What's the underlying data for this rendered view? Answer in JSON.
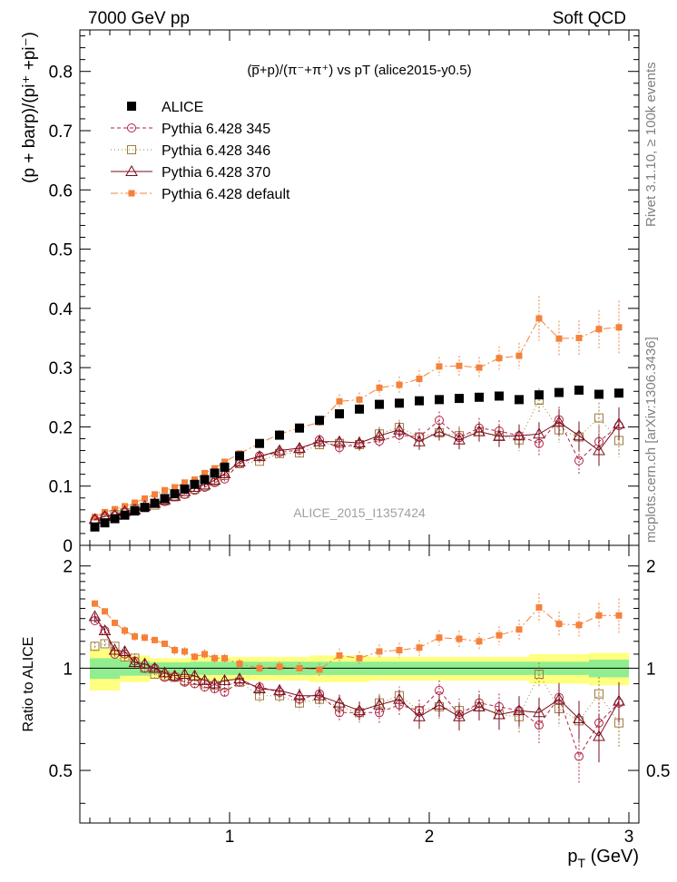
{
  "header": {
    "left": "7000 GeV pp",
    "right": "Soft QCD"
  },
  "side_labels": {
    "rivet": "Rivet 3.1.10, ≥ 100k events",
    "mcplots": "mcplots.cern.ch [arXiv:1306.3436]"
  },
  "colors": {
    "alice": "#000000",
    "p345": "#b22244",
    "p346": "#9c7c3c",
    "p370": "#7a0c1c",
    "pdef": "#f5813a",
    "band_inner": "#90ee90",
    "band_outer": "#ffff80"
  },
  "chart_data": [
    {
      "type": "scatter",
      "title": "(p̅+p)/(π⁻+π⁺) vs pT (alice2015-y0.5)",
      "xlabel": "p_T (GeV)",
      "ylabel": "(p + barp)/(pi⁺ +pi⁻)",
      "xlim": [
        0.25,
        3.05
      ],
      "ylim": [
        0,
        0.87
      ],
      "yticks": [
        0,
        0.1,
        0.2,
        0.3,
        0.4,
        0.5,
        0.6,
        0.7,
        0.8
      ],
      "yticklabels": [
        "0",
        "0.1",
        "0.2",
        "0.3",
        "0.4",
        "0.5",
        "0.6",
        "0.7",
        "0.8"
      ],
      "xticks": [
        1,
        2,
        3
      ],
      "xticklabels": [
        "1",
        "2",
        "3"
      ],
      "watermark": "ALICE_2015_I1357424",
      "legend": [
        "ALICE",
        "Pythia 6.428 345",
        "Pythia 6.428 346",
        "Pythia 6.428 370",
        "Pythia 6.428 default"
      ],
      "x": [
        0.325,
        0.375,
        0.425,
        0.475,
        0.525,
        0.575,
        0.625,
        0.675,
        0.725,
        0.775,
        0.825,
        0.875,
        0.925,
        0.975,
        1.05,
        1.15,
        1.25,
        1.35,
        1.45,
        1.55,
        1.65,
        1.75,
        1.85,
        1.95,
        2.05,
        2.15,
        2.25,
        2.35,
        2.45,
        2.55,
        2.65,
        2.75,
        2.85,
        2.95
      ],
      "series": [
        {
          "name": "ALICE",
          "values": [
            0.031,
            0.038,
            0.045,
            0.051,
            0.058,
            0.064,
            0.071,
            0.079,
            0.087,
            0.095,
            0.103,
            0.111,
            0.122,
            0.132,
            0.151,
            0.172,
            0.186,
            0.198,
            0.211,
            0.222,
            0.23,
            0.238,
            0.24,
            0.244,
            0.246,
            0.248,
            0.25,
            0.252,
            0.246,
            0.254,
            0.258,
            0.262,
            0.255,
            0.257
          ]
        },
        {
          "name": "Pythia 6.428 345",
          "values": [
            0.043,
            0.049,
            0.05,
            0.056,
            0.061,
            0.064,
            0.071,
            0.074,
            0.082,
            0.086,
            0.093,
            0.098,
            0.106,
            0.112,
            0.138,
            0.151,
            0.157,
            0.161,
            0.178,
            0.165,
            0.171,
            0.176,
            0.186,
            0.183,
            0.211,
            0.182,
            0.198,
            0.193,
            0.185,
            0.172,
            0.212,
            0.143,
            0.175,
            0.202
          ]
        },
        {
          "name": "Pythia 6.428 346",
          "values": [
            0.036,
            0.045,
            0.052,
            0.055,
            0.062,
            0.064,
            0.068,
            0.075,
            0.082,
            0.087,
            0.095,
            0.1,
            0.108,
            0.118,
            0.138,
            0.142,
            0.155,
            0.156,
            0.17,
            0.172,
            0.17,
            0.188,
            0.199,
            0.183,
            0.19,
            0.185,
            0.192,
            0.185,
            0.178,
            0.245,
            0.195,
            0.183,
            0.215,
            0.177
          ]
        },
        {
          "name": "Pythia 6.428 370",
          "values": [
            0.044,
            0.049,
            0.051,
            0.057,
            0.06,
            0.066,
            0.071,
            0.077,
            0.083,
            0.091,
            0.098,
            0.102,
            0.11,
            0.121,
            0.141,
            0.15,
            0.16,
            0.164,
            0.175,
            0.175,
            0.173,
            0.185,
            0.195,
            0.175,
            0.192,
            0.178,
            0.192,
            0.184,
            0.185,
            0.188,
            0.208,
            0.185,
            0.16,
            0.205
          ]
        },
        {
          "name": "Pythia 6.428 default",
          "values": [
            0.048,
            0.056,
            0.061,
            0.066,
            0.072,
            0.079,
            0.086,
            0.093,
            0.098,
            0.106,
            0.111,
            0.122,
            0.13,
            0.141,
            0.155,
            0.172,
            0.188,
            0.198,
            0.208,
            0.243,
            0.246,
            0.266,
            0.271,
            0.281,
            0.302,
            0.303,
            0.3,
            0.316,
            0.32,
            0.383,
            0.349,
            0.35,
            0.365,
            0.368
          ]
        }
      ],
      "errors": {
        "ALICE": 0.004,
        "Pythia 6.428 345": [
          0.001,
          0.001,
          0.001,
          0.002,
          0.002,
          0.002,
          0.002,
          0.002,
          0.003,
          0.003,
          0.003,
          0.003,
          0.004,
          0.004,
          0.005,
          0.006,
          0.007,
          0.008,
          0.009,
          0.01,
          0.011,
          0.012,
          0.013,
          0.014,
          0.015,
          0.016,
          0.017,
          0.018,
          0.019,
          0.02,
          0.022,
          0.024,
          0.026,
          0.028
        ],
        "Pythia 6.428 346": [
          0.001,
          0.001,
          0.001,
          0.002,
          0.002,
          0.002,
          0.002,
          0.002,
          0.003,
          0.003,
          0.003,
          0.003,
          0.004,
          0.004,
          0.005,
          0.006,
          0.007,
          0.008,
          0.009,
          0.01,
          0.011,
          0.012,
          0.013,
          0.014,
          0.015,
          0.016,
          0.017,
          0.018,
          0.019,
          0.02,
          0.022,
          0.024,
          0.026,
          0.028
        ],
        "Pythia 6.428 370": [
          0.001,
          0.001,
          0.001,
          0.002,
          0.002,
          0.002,
          0.002,
          0.002,
          0.003,
          0.003,
          0.003,
          0.003,
          0.004,
          0.004,
          0.005,
          0.006,
          0.007,
          0.008,
          0.009,
          0.01,
          0.011,
          0.012,
          0.013,
          0.014,
          0.015,
          0.016,
          0.017,
          0.018,
          0.019,
          0.02,
          0.022,
          0.024,
          0.026,
          0.028
        ],
        "Pythia 6.428 default": [
          0.001,
          0.001,
          0.001,
          0.002,
          0.002,
          0.002,
          0.002,
          0.002,
          0.003,
          0.003,
          0.003,
          0.004,
          0.004,
          0.004,
          0.005,
          0.006,
          0.007,
          0.008,
          0.009,
          0.012,
          0.012,
          0.013,
          0.014,
          0.015,
          0.016,
          0.017,
          0.018,
          0.02,
          0.022,
          0.038,
          0.03,
          0.03,
          0.032,
          0.045
        ]
      }
    },
    {
      "type": "scatter",
      "title": "Ratio to ALICE",
      "xlabel": "p_T (GeV)",
      "ylabel": "Ratio to ALICE",
      "xlim": [
        0.25,
        3.05
      ],
      "ylim": [
        0.35,
        2.3
      ],
      "yticks": [
        0.5,
        1,
        2
      ],
      "yticklabels": [
        "0.5",
        "1",
        "2"
      ],
      "xticks": [
        1,
        2,
        3
      ],
      "xticklabels": [
        "1",
        "2",
        "3"
      ],
      "band_edges": [
        0.3,
        0.45,
        0.6,
        0.8,
        1.0,
        1.2,
        1.4,
        1.5,
        1.7,
        1.9,
        2.1,
        2.3,
        2.5,
        2.8,
        3.0
      ],
      "band_inner": [
        0.07,
        0.05,
        0.04,
        0.045,
        0.045,
        0.045,
        0.045,
        0.045,
        0.045,
        0.045,
        0.045,
        0.045,
        0.045,
        0.06,
        0.065
      ],
      "band_outer": [
        0.14,
        0.09,
        0.07,
        0.08,
        0.08,
        0.08,
        0.09,
        0.09,
        0.08,
        0.08,
        0.08,
        0.08,
        0.1,
        0.11,
        0.12
      ],
      "series": [
        {
          "name": "Pythia 6.428 345",
          "values": [
            1.38,
            1.29,
            1.1,
            1.1,
            1.05,
            1.0,
            1.0,
            0.94,
            0.94,
            0.91,
            0.9,
            0.88,
            0.87,
            0.85,
            0.91,
            0.88,
            0.85,
            0.81,
            0.84,
            0.74,
            0.74,
            0.74,
            0.78,
            0.75,
            0.86,
            0.73,
            0.79,
            0.77,
            0.75,
            0.68,
            0.82,
            0.55,
            0.69,
            0.79
          ]
        },
        {
          "name": "Pythia 6.428 346",
          "values": [
            1.16,
            1.18,
            1.16,
            1.08,
            1.07,
            1.0,
            0.96,
            0.95,
            0.94,
            0.92,
            0.92,
            0.9,
            0.89,
            0.89,
            0.91,
            0.83,
            0.83,
            0.79,
            0.81,
            0.77,
            0.74,
            0.79,
            0.83,
            0.75,
            0.77,
            0.75,
            0.77,
            0.73,
            0.72,
            0.96,
            0.76,
            0.7,
            0.84,
            0.69
          ]
        },
        {
          "name": "Pythia 6.428 370",
          "values": [
            1.42,
            1.29,
            1.13,
            1.12,
            1.04,
            1.03,
            1.0,
            0.97,
            0.95,
            0.96,
            0.95,
            0.92,
            0.9,
            0.92,
            0.93,
            0.87,
            0.86,
            0.83,
            0.83,
            0.79,
            0.75,
            0.78,
            0.81,
            0.72,
            0.78,
            0.72,
            0.77,
            0.73,
            0.75,
            0.74,
            0.81,
            0.71,
            0.63,
            0.8
          ]
        },
        {
          "name": "Pythia 6.428 default",
          "values": [
            1.55,
            1.47,
            1.36,
            1.29,
            1.24,
            1.23,
            1.21,
            1.18,
            1.13,
            1.12,
            1.08,
            1.1,
            1.07,
            1.07,
            1.03,
            1.0,
            1.01,
            1.0,
            0.99,
            1.09,
            1.07,
            1.12,
            1.13,
            1.15,
            1.23,
            1.22,
            1.2,
            1.25,
            1.3,
            1.51,
            1.35,
            1.34,
            1.43,
            1.43
          ]
        }
      ]
    }
  ]
}
